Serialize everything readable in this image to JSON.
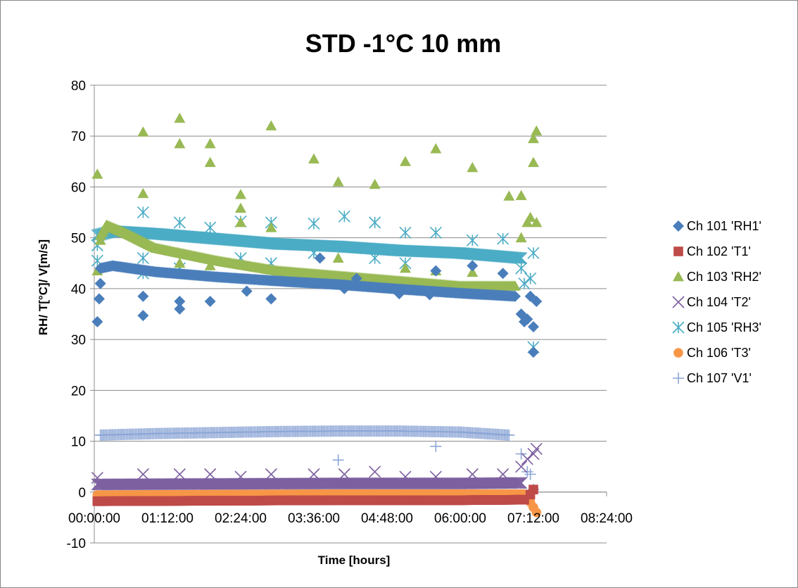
{
  "chart_data": {
    "type": "scatter",
    "title": "STD -1°C 10 mm",
    "xlabel": "Time [hours]",
    "ylabel": "RH/ T[°C]/ V[m/s]",
    "x_unit": "hours",
    "xlim": [
      0,
      8.4
    ],
    "x_ticks": [
      0,
      1.2,
      2.4,
      3.6,
      4.8,
      6.0,
      7.2,
      8.4
    ],
    "x_tick_labels": [
      "00:00:00",
      "01:12:00",
      "02:24:00",
      "03:36:00",
      "04:48:00",
      "06:00:00",
      "07:12:00",
      "08:24:00"
    ],
    "ylim": [
      -10,
      80
    ],
    "y_ticks": [
      -10,
      0,
      10,
      20,
      30,
      40,
      50,
      60,
      70,
      80
    ],
    "grid": "horizontal",
    "legend_position": "right",
    "series": [
      {
        "name": "Ch 101 'RH1'",
        "color": "#4a7ebb",
        "marker": "diamond",
        "trend": {
          "x": [
            0.1,
            0.3,
            1.0,
            2.0,
            3.0,
            4.0,
            5.0,
            6.0,
            6.9
          ],
          "y": [
            44.0,
            44.5,
            43.3,
            42.3,
            41.5,
            40.8,
            39.9,
            39.1,
            38.5
          ]
        },
        "points": [
          [
            0.05,
            33.5
          ],
          [
            0.08,
            38.0
          ],
          [
            0.1,
            41.0
          ],
          [
            0.8,
            34.7
          ],
          [
            0.8,
            38.5
          ],
          [
            1.4,
            36.0
          ],
          [
            1.4,
            37.5
          ],
          [
            1.9,
            37.5
          ],
          [
            2.5,
            39.5
          ],
          [
            2.9,
            38.0
          ],
          [
            3.7,
            46.0
          ],
          [
            4.1,
            40.0
          ],
          [
            4.3,
            42.0
          ],
          [
            5.0,
            39.0
          ],
          [
            5.5,
            38.8
          ],
          [
            5.6,
            43.5
          ],
          [
            6.2,
            44.5
          ],
          [
            6.7,
            43.0
          ],
          [
            7.0,
            35.0
          ],
          [
            7.05,
            33.5
          ],
          [
            7.1,
            34.0
          ],
          [
            7.15,
            38.5
          ],
          [
            7.2,
            32.5
          ],
          [
            7.2,
            27.5
          ],
          [
            7.25,
            37.5
          ]
        ]
      },
      {
        "name": "Ch 102 'T1'",
        "color": "#be4b48",
        "marker": "square",
        "trend": {
          "x": [
            0.05,
            2.0,
            4.0,
            6.0,
            7.05
          ],
          "y": [
            -1.8,
            -1.7,
            -1.6,
            -1.6,
            -1.5
          ]
        },
        "points": [
          [
            7.15,
            -0.5
          ],
          [
            7.2,
            0.5
          ]
        ]
      },
      {
        "name": "Ch 103 'RH2'",
        "color": "#98b954",
        "marker": "triangle",
        "trend": {
          "x": [
            0.1,
            0.2,
            0.5,
            1.0,
            2.0,
            3.0,
            4.0,
            5.0,
            6.0,
            6.9
          ],
          "y": [
            50.5,
            52.5,
            51.0,
            48.0,
            45.5,
            43.5,
            42.5,
            41.5,
            40.5,
            40.5
          ]
        },
        "points": [
          [
            0.05,
            62.5
          ],
          [
            0.05,
            43.5
          ],
          [
            0.1,
            49.5
          ],
          [
            0.8,
            70.8
          ],
          [
            0.8,
            58.7
          ],
          [
            1.4,
            73.5
          ],
          [
            1.4,
            68.5
          ],
          [
            1.4,
            45.0
          ],
          [
            1.9,
            68.5
          ],
          [
            1.9,
            64.8
          ],
          [
            1.9,
            44.5
          ],
          [
            2.4,
            58.5
          ],
          [
            2.4,
            55.8
          ],
          [
            2.4,
            53.0
          ],
          [
            2.9,
            72.0
          ],
          [
            2.9,
            52.0
          ],
          [
            3.6,
            65.5
          ],
          [
            4.0,
            61.0
          ],
          [
            4.0,
            46.0
          ],
          [
            4.6,
            60.5
          ],
          [
            5.1,
            65.0
          ],
          [
            5.1,
            44.0
          ],
          [
            5.6,
            67.5
          ],
          [
            5.6,
            43.5
          ],
          [
            6.2,
            63.8
          ],
          [
            6.2,
            43.2
          ],
          [
            6.8,
            58.2
          ],
          [
            7.0,
            58.3
          ],
          [
            7.0,
            50.0
          ],
          [
            7.1,
            53.0
          ],
          [
            7.15,
            54.0
          ],
          [
            7.2,
            64.8
          ],
          [
            7.2,
            69.5
          ],
          [
            7.25,
            71.0
          ],
          [
            7.25,
            53.0
          ]
        ]
      },
      {
        "name": "Ch 104 'T2'",
        "color": "#7d60a0",
        "marker": "x",
        "trend": {
          "x": [
            0.05,
            2.0,
            4.0,
            6.0,
            7.0
          ],
          "y": [
            1.5,
            1.6,
            1.7,
            1.7,
            1.8
          ]
        },
        "points": [
          [
            0.05,
            2.8
          ],
          [
            0.8,
            3.5
          ],
          [
            1.4,
            3.5
          ],
          [
            1.9,
            3.5
          ],
          [
            2.4,
            3.0
          ],
          [
            2.9,
            3.5
          ],
          [
            3.6,
            3.5
          ],
          [
            4.1,
            3.5
          ],
          [
            4.6,
            4.0
          ],
          [
            5.1,
            3.0
          ],
          [
            5.6,
            3.0
          ],
          [
            6.2,
            3.5
          ],
          [
            6.7,
            3.5
          ],
          [
            7.0,
            5.0
          ],
          [
            7.1,
            6.5
          ],
          [
            7.2,
            7.5
          ],
          [
            7.25,
            8.5
          ]
        ]
      },
      {
        "name": "Ch 105 'RH3'",
        "color": "#4bacc6",
        "marker": "asterisk",
        "trend": {
          "x": [
            0.05,
            0.3,
            1.0,
            2.0,
            3.0,
            4.0,
            5.0,
            6.0,
            7.0
          ],
          "y": [
            50.5,
            51.3,
            50.8,
            49.8,
            48.8,
            48.3,
            47.5,
            47.0,
            46.0
          ]
        },
        "points": [
          [
            0.05,
            45.5
          ],
          [
            0.05,
            48.5
          ],
          [
            0.8,
            55.0
          ],
          [
            0.8,
            46.0
          ],
          [
            0.8,
            43.0
          ],
          [
            1.4,
            53.0
          ],
          [
            1.4,
            44.0
          ],
          [
            1.9,
            52.0
          ],
          [
            2.4,
            53.2
          ],
          [
            2.4,
            46.0
          ],
          [
            2.9,
            53.0
          ],
          [
            2.9,
            45.0
          ],
          [
            3.6,
            52.8
          ],
          [
            3.6,
            47.0
          ],
          [
            4.1,
            54.2
          ],
          [
            4.6,
            53.0
          ],
          [
            4.6,
            46.0
          ],
          [
            5.1,
            51.0
          ],
          [
            5.1,
            45.0
          ],
          [
            5.6,
            51.0
          ],
          [
            6.2,
            49.5
          ],
          [
            6.7,
            49.8
          ],
          [
            7.0,
            44.0
          ],
          [
            7.05,
            41.0
          ],
          [
            7.15,
            42.0
          ],
          [
            7.2,
            47.0
          ],
          [
            7.2,
            28.5
          ]
        ]
      },
      {
        "name": "Ch 106 'T3'",
        "color": "#f79646",
        "marker": "circle",
        "trend": {
          "x": [
            0.05,
            2.0,
            4.0,
            6.0,
            7.05
          ],
          "y": [
            -0.6,
            -0.5,
            -0.4,
            -0.4,
            -0.4
          ]
        },
        "points": [
          [
            7.1,
            -1.0
          ],
          [
            7.15,
            -2.0
          ],
          [
            7.2,
            -3.0
          ],
          [
            7.25,
            -4.0
          ]
        ]
      },
      {
        "name": "Ch 107 'V1'",
        "color": "#8ca6d6",
        "marker": "plus",
        "trend": {
          "x": [
            0.1,
            1.0,
            2.0,
            3.0,
            4.0,
            5.0,
            6.0,
            6.8
          ],
          "y": [
            11.2,
            11.5,
            11.7,
            11.9,
            12.0,
            12.0,
            11.8,
            11.2
          ]
        },
        "points": [
          [
            4.0,
            6.3
          ],
          [
            5.6,
            9.0
          ],
          [
            7.0,
            7.5
          ],
          [
            7.1,
            4.0
          ],
          [
            7.15,
            3.5
          ],
          [
            7.2,
            0.5
          ]
        ]
      }
    ]
  }
}
